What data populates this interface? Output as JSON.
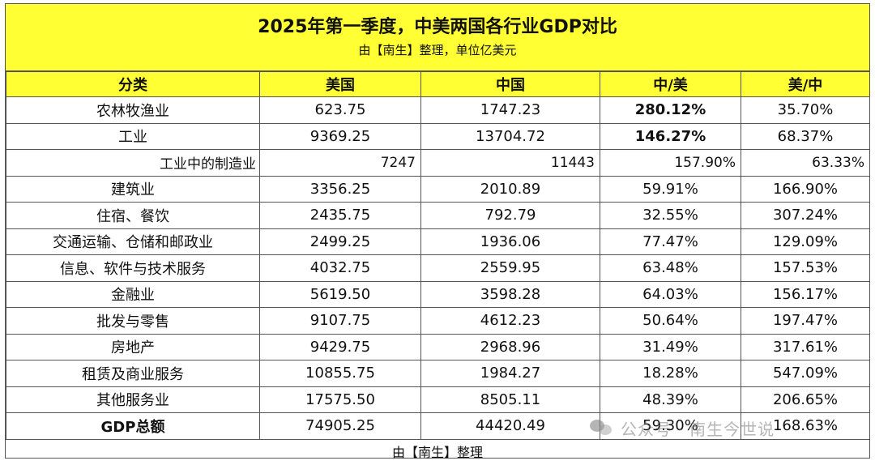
{
  "title": "2025年第一季度，中美两国各行业GDP对比",
  "subtitle": "由【南生】整理，单位亿美元",
  "headers": [
    "分类",
    "美国",
    "中国",
    "中/美",
    "美/中"
  ],
  "rows": [
    {
      "name": "农林牧渔业",
      "us": "623.75",
      "cn": "1747.23",
      "cn_us": "280.12%",
      "us_cn": "35.70%",
      "ratio_bold": true
    },
    {
      "name": "工业",
      "us": "9369.25",
      "cn": "13704.72",
      "cn_us": "146.27%",
      "us_cn": "68.37%",
      "ratio_bold": true
    },
    {
      "name": "工业中的制造业",
      "us": "7247",
      "cn": "11443",
      "cn_us": "157.90%",
      "us_cn": "63.33%",
      "sub": true
    },
    {
      "name": "建筑业",
      "us": "3356.25",
      "cn": "2010.89",
      "cn_us": "59.91%",
      "us_cn": "166.90%"
    },
    {
      "name": "住宿、餐饮",
      "us": "2435.75",
      "cn": "792.79",
      "cn_us": "32.55%",
      "us_cn": "307.24%"
    },
    {
      "name": "交通运输、仓储和邮政业",
      "us": "2499.25",
      "cn": "1936.06",
      "cn_us": "77.47%",
      "us_cn": "129.09%"
    },
    {
      "name": "信息、软件与技术服务",
      "us": "4032.75",
      "cn": "2559.95",
      "cn_us": "63.48%",
      "us_cn": "157.53%"
    },
    {
      "name": "金融业",
      "us": "5619.50",
      "cn": "3598.28",
      "cn_us": "64.03%",
      "us_cn": "156.17%"
    },
    {
      "name": "批发与零售",
      "us": "9107.75",
      "cn": "4612.23",
      "cn_us": "50.64%",
      "us_cn": "197.47%"
    },
    {
      "name": "房地产",
      "us": "9429.75",
      "cn": "2968.96",
      "cn_us": "31.49%",
      "us_cn": "317.61%"
    },
    {
      "name": "租赁及商业服务",
      "us": "10855.75",
      "cn": "1984.27",
      "cn_us": "18.28%",
      "us_cn": "547.09%"
    },
    {
      "name": "其他服务业",
      "us": "17575.50",
      "cn": "8505.11",
      "cn_us": "48.39%",
      "us_cn": "206.65%"
    },
    {
      "name": "GDP总额",
      "us": "74905.25",
      "cn": "44420.49",
      "cn_us": "59.30%",
      "us_cn": "168.63%",
      "name_bold": true
    }
  ],
  "footer": "由【南生】整理",
  "watermark": "公众号 · 南生今世说",
  "colors": {
    "header_bg": "#ffff33",
    "border": "#555555"
  }
}
